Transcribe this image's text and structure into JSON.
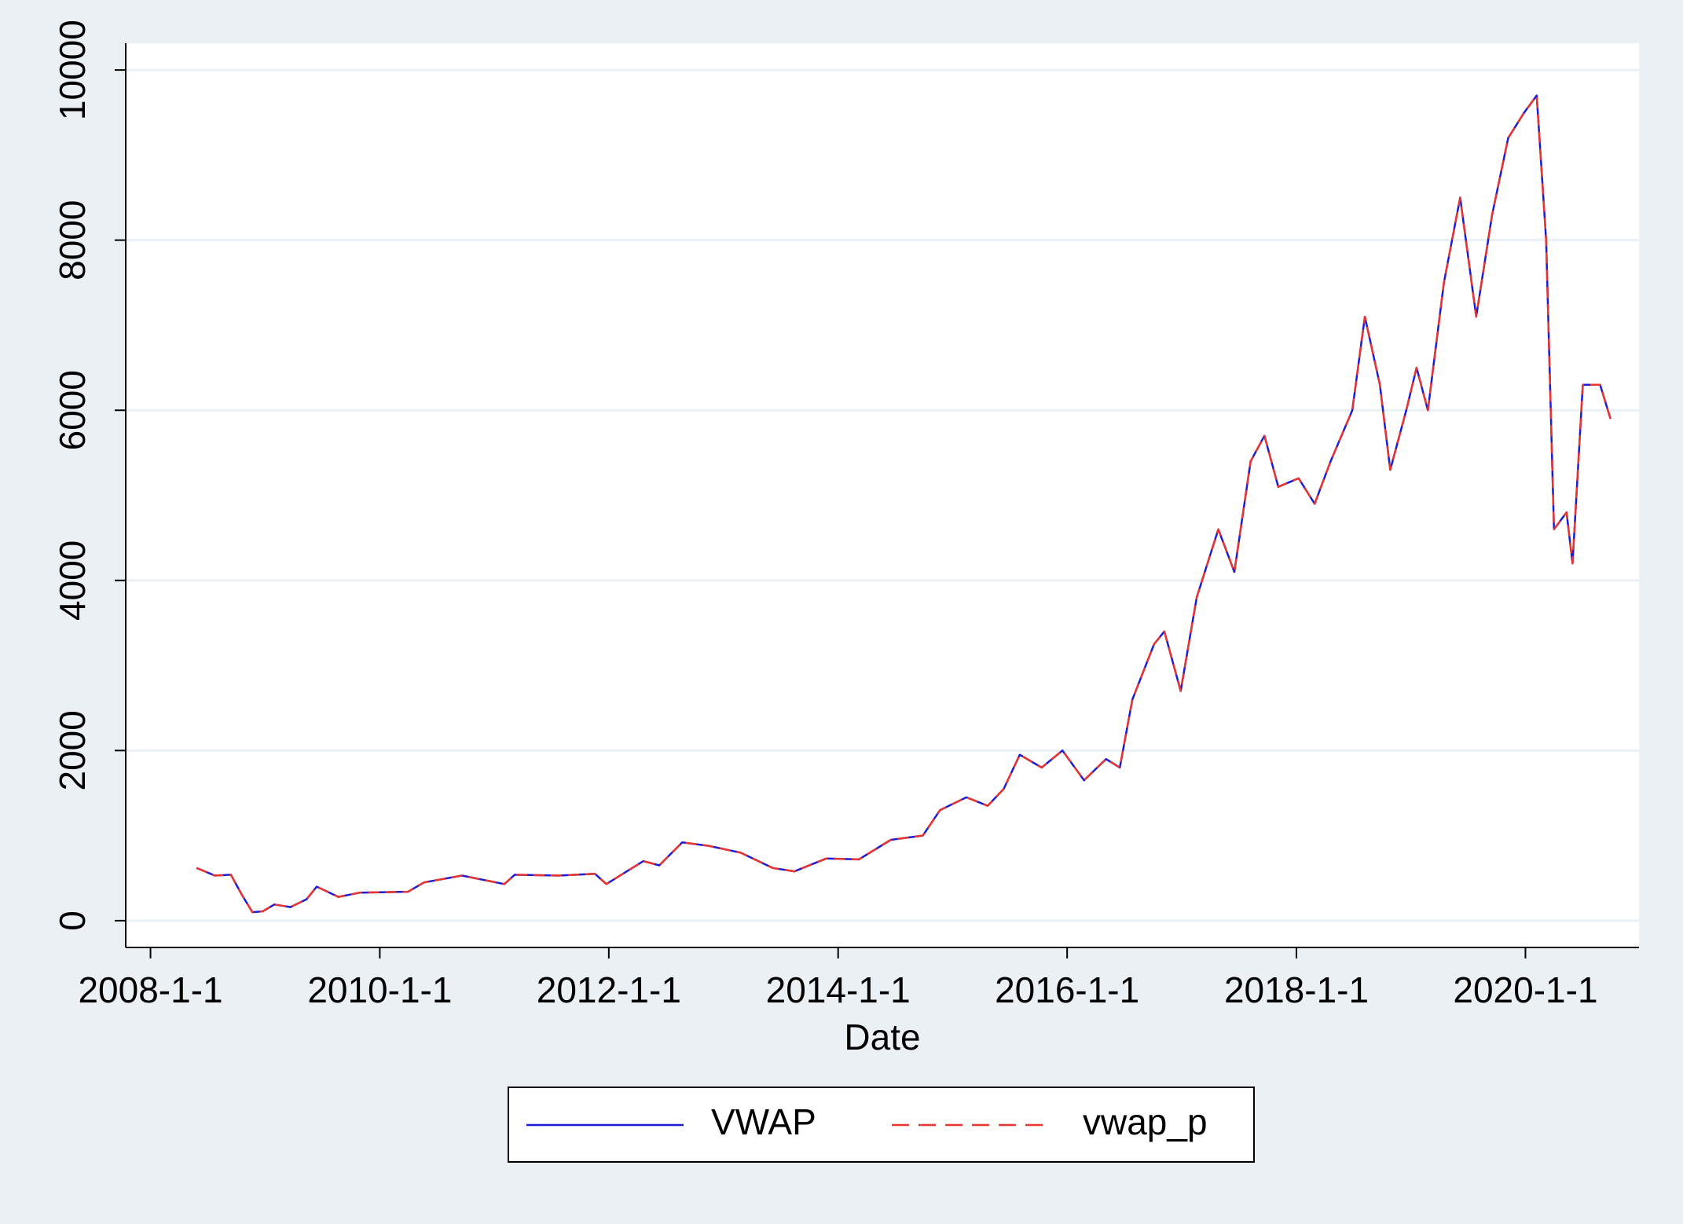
{
  "chart_data": {
    "type": "line",
    "x_label": "Date",
    "x": [
      "2008-05-27",
      "2008-07-24",
      "2008-09-13",
      "2008-10-19",
      "2008-11-21",
      "2008-12-24",
      "2009-01-30",
      "2009-03-22",
      "2009-05-12",
      "2009-06-14",
      "2009-08-22",
      "2009-10-30",
      "2010-04-01",
      "2010-05-22",
      "2010-09-20",
      "2011-02-02",
      "2011-03-07",
      "2011-07-24",
      "2011-11-18",
      "2011-12-24",
      "2012-04-20",
      "2012-06-10",
      "2012-08-22",
      "2012-11-14",
      "2013-02-24",
      "2013-06-06",
      "2013-08-15",
      "2013-11-24",
      "2014-03-08",
      "2014-06-18",
      "2014-09-28",
      "2014-11-22",
      "2015-02-14",
      "2015-04-23",
      "2015-06-13",
      "2015-08-03",
      "2015-10-12",
      "2015-12-17",
      "2016-02-24",
      "2016-05-04",
      "2016-06-17",
      "2016-07-27",
      "2016-10-04",
      "2016-11-06",
      "2016-12-28",
      "2017-02-17",
      "2017-04-27",
      "2017-06-17",
      "2017-08-08",
      "2017-09-21",
      "2017-11-04",
      "2018-01-08",
      "2018-02-28",
      "2018-04-20",
      "2018-06-28",
      "2018-08-07",
      "2018-09-24",
      "2018-10-27",
      "2018-12-17",
      "2019-01-19",
      "2019-02-24",
      "2019-04-16",
      "2019-06-07",
      "2019-07-28",
      "2019-09-17",
      "2019-11-07",
      "2019-12-28",
      "2020-02-06",
      "2020-03-07",
      "2020-04-01",
      "2020-05-11",
      "2020-05-30",
      "2020-07-02",
      "2020-08-26",
      "2020-09-28"
    ],
    "series": [
      {
        "name": "VWAP",
        "color": "#1c1cd6",
        "dash": false,
        "values": [
          620,
          530,
          540,
          300,
          100,
          110,
          190,
          160,
          250,
          400,
          280,
          330,
          340,
          450,
          530,
          430,
          540,
          530,
          550,
          430,
          700,
          650,
          920,
          880,
          800,
          620,
          580,
          730,
          720,
          950,
          1000,
          1300,
          1450,
          1350,
          1550,
          1950,
          1800,
          2000,
          1650,
          1900,
          1800,
          2600,
          3250,
          3400,
          2700,
          3800,
          4600,
          4100,
          5400,
          5700,
          5100,
          5200,
          4900,
          5400,
          6000,
          7100,
          6300,
          5300,
          6000,
          6500,
          6000,
          7500,
          8500,
          7100,
          8300,
          9200,
          9500,
          9700,
          8000,
          4600,
          4800,
          4200,
          6300,
          6300,
          5900
        ]
      },
      {
        "name": "vwap_p",
        "color": "#e8352f",
        "dash": true,
        "values": [
          620,
          530,
          540,
          300,
          100,
          110,
          190,
          160,
          250,
          400,
          280,
          330,
          340,
          450,
          530,
          430,
          540,
          530,
          550,
          430,
          700,
          650,
          920,
          880,
          800,
          620,
          580,
          730,
          720,
          950,
          1000,
          1300,
          1450,
          1350,
          1550,
          1950,
          1800,
          2000,
          1650,
          1900,
          1800,
          2600,
          3250,
          3400,
          2700,
          3800,
          4600,
          4100,
          5400,
          5700,
          5100,
          5200,
          4900,
          5400,
          6000,
          7100,
          6300,
          5300,
          6000,
          6500,
          6000,
          7500,
          8500,
          7100,
          8300,
          9200,
          9500,
          9700,
          8000,
          4600,
          4800,
          4200,
          6300,
          6300,
          5900
        ]
      }
    ],
    "xlim": [
      "2007-10-14",
      "2020-12-28"
    ],
    "xticks": [
      {
        "value": "2008-01-01",
        "label": "2008-1-1"
      },
      {
        "value": "2010-01-01",
        "label": "2010-1-1"
      },
      {
        "value": "2012-01-01",
        "label": "2012-1-1"
      },
      {
        "value": "2014-01-01",
        "label": "2014-1-1"
      },
      {
        "value": "2016-01-01",
        "label": "2016-1-1"
      },
      {
        "value": "2018-01-01",
        "label": "2018-1-1"
      },
      {
        "value": "2020-01-01",
        "label": "2020-1-1"
      }
    ],
    "ylim": [
      -315,
      10315
    ],
    "yticks": [
      0,
      2000,
      4000,
      6000,
      8000,
      10000
    ],
    "grid": true,
    "legend": "bottom"
  }
}
